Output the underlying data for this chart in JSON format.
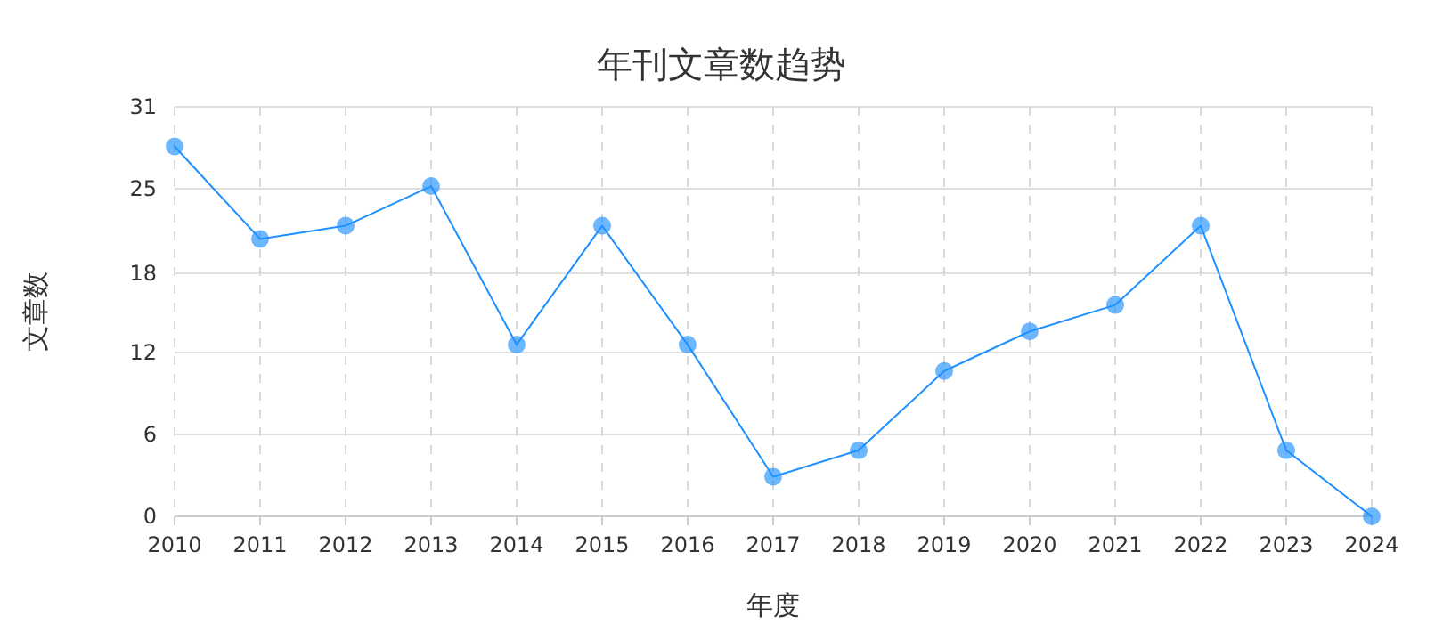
{
  "chart_data": {
    "type": "line",
    "title": "年刊文章数趋势",
    "xlabel": "年度",
    "ylabel": "文章数",
    "categories": [
      "2010",
      "2011",
      "2012",
      "2013",
      "2014",
      "2015",
      "2016",
      "2017",
      "2018",
      "2019",
      "2020",
      "2021",
      "2022",
      "2023",
      "2024"
    ],
    "series": [
      {
        "color": "#1e90ff",
        "values": [
          28,
          21,
          22,
          25,
          13,
          22,
          13,
          3,
          5,
          11,
          14,
          16,
          22,
          5,
          0
        ]
      }
    ],
    "ylim": [
      0,
      31
    ],
    "yticks": [
      0,
      {
        "value": 6.2,
        "label": "6"
      },
      {
        "value": 12.4,
        "label": "12"
      },
      {
        "value": 18.4,
        "label": "18"
      },
      {
        "value": 24.8,
        "label": "25"
      },
      31
    ],
    "grid": true,
    "marker": "circle",
    "line_style": "solid"
  }
}
